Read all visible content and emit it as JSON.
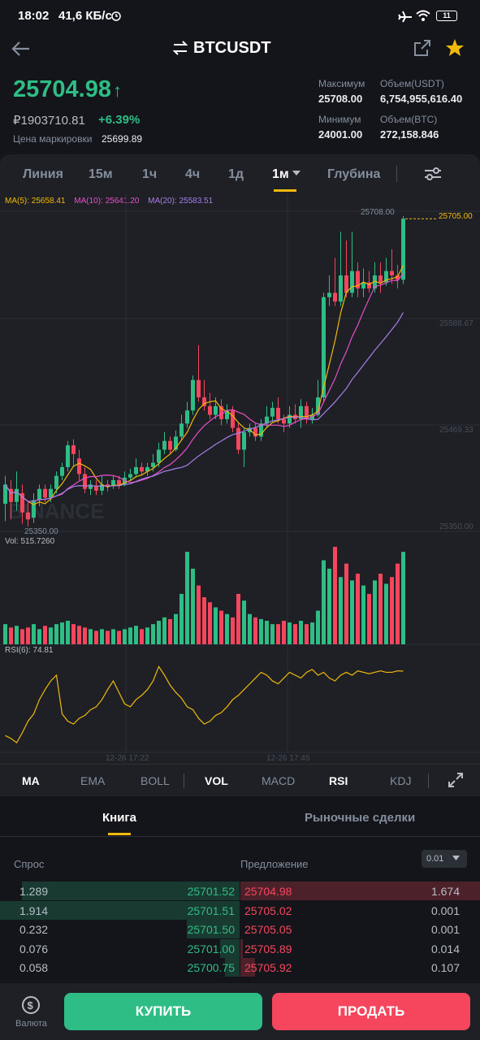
{
  "status": {
    "time": "18:02",
    "network": "41,6 КБ/с",
    "battery": "11"
  },
  "header": {
    "pair": "BTCUSDT"
  },
  "ticker": {
    "last_price": "25704.98",
    "fiat_price": "₽1903710.81",
    "change": "+6.39%",
    "mark_label": "Цена маркировки",
    "mark_price": "25699.89",
    "high_label": "Максимум",
    "high": "25708.00",
    "low_label": "Минимум",
    "low": "24001.00",
    "vol_usdt_label": "Объем(USDT)",
    "vol_usdt": "6,754,955,616.40",
    "vol_btc_label": "Объем(BTC)",
    "vol_btc": "272,158.846"
  },
  "intervals": {
    "line": "Линия",
    "m15": "15м",
    "h1": "1ч",
    "h4": "4ч",
    "d1": "1д",
    "m1": "1м",
    "depth": "Глубина"
  },
  "chart_data": {
    "type": "candlestick",
    "ma_legend": {
      "ma5": "MA(5): 25658.41",
      "ma10": "MA(10): 25641.20",
      "ma20": "MA(20): 25583.51"
    },
    "price_labels": [
      "25708.00",
      "25705.00",
      "25588.67",
      "25469.33",
      "25350.00",
      "25350.00"
    ],
    "ylim": [
      25350,
      25708
    ],
    "vol_label": "Vol: 515.7260",
    "rsi_label": "RSI(6): 74.81",
    "time_labels": [
      "12-26 17:22",
      "12-26 17:45"
    ],
    "watermark": "BINANCE",
    "candles": [
      {
        "o": 25378,
        "c": 25400,
        "h": 25410,
        "l": 25358
      },
      {
        "o": 25395,
        "c": 25380,
        "h": 25405,
        "l": 25360
      },
      {
        "o": 25380,
        "c": 25395,
        "h": 25415,
        "l": 25370
      },
      {
        "o": 25390,
        "c": 25368,
        "h": 25400,
        "l": 25355
      },
      {
        "o": 25368,
        "c": 25360,
        "h": 25380,
        "l": 25352
      },
      {
        "o": 25362,
        "c": 25382,
        "h": 25390,
        "l": 25356
      },
      {
        "o": 25382,
        "c": 25395,
        "h": 25400,
        "l": 25375
      },
      {
        "o": 25395,
        "c": 25385,
        "h": 25400,
        "l": 25380
      },
      {
        "o": 25385,
        "c": 25395,
        "h": 25400,
        "l": 25380
      },
      {
        "o": 25395,
        "c": 25410,
        "h": 25415,
        "l": 25390
      },
      {
        "o": 25410,
        "c": 25420,
        "h": 25425,
        "l": 25405
      },
      {
        "o": 25420,
        "c": 25445,
        "h": 25450,
        "l": 25415
      },
      {
        "o": 25445,
        "c": 25435,
        "h": 25452,
        "l": 25420
      },
      {
        "o": 25430,
        "c": 25412,
        "h": 25440,
        "l": 25405
      },
      {
        "o": 25412,
        "c": 25395,
        "h": 25420,
        "l": 25390
      },
      {
        "o": 25395,
        "c": 25400,
        "h": 25405,
        "l": 25388
      },
      {
        "o": 25398,
        "c": 25393,
        "h": 25405,
        "l": 25388
      },
      {
        "o": 25393,
        "c": 25400,
        "h": 25410,
        "l": 25388
      },
      {
        "o": 25400,
        "c": 25398,
        "h": 25405,
        "l": 25392
      },
      {
        "o": 25398,
        "c": 25405,
        "h": 25410,
        "l": 25395
      },
      {
        "o": 25405,
        "c": 25400,
        "h": 25410,
        "l": 25395
      },
      {
        "o": 25400,
        "c": 25408,
        "h": 25415,
        "l": 25398
      },
      {
        "o": 25408,
        "c": 25412,
        "h": 25418,
        "l": 25405
      },
      {
        "o": 25412,
        "c": 25420,
        "h": 25430,
        "l": 25410
      },
      {
        "o": 25420,
        "c": 25415,
        "h": 25425,
        "l": 25410
      },
      {
        "o": 25415,
        "c": 25420,
        "h": 25425,
        "l": 25410
      },
      {
        "o": 25420,
        "c": 25425,
        "h": 25435,
        "l": 25415
      },
      {
        "o": 25425,
        "c": 25440,
        "h": 25448,
        "l": 25420
      },
      {
        "o": 25440,
        "c": 25450,
        "h": 25460,
        "l": 25435
      },
      {
        "o": 25450,
        "c": 25440,
        "h": 25455,
        "l": 25435
      },
      {
        "o": 25440,
        "c": 25455,
        "h": 25462,
        "l": 25438
      },
      {
        "o": 25455,
        "c": 25470,
        "h": 25480,
        "l": 25450
      },
      {
        "o": 25470,
        "c": 25485,
        "h": 25495,
        "l": 25465
      },
      {
        "o": 25485,
        "c": 25520,
        "h": 25525,
        "l": 25480
      },
      {
        "o": 25520,
        "c": 25500,
        "h": 25560,
        "l": 25495
      },
      {
        "o": 25500,
        "c": 25490,
        "h": 25520,
        "l": 25485
      },
      {
        "o": 25490,
        "c": 25480,
        "h": 25505,
        "l": 25475
      },
      {
        "o": 25480,
        "c": 25490,
        "h": 25500,
        "l": 25475
      },
      {
        "o": 25490,
        "c": 25475,
        "h": 25498,
        "l": 25468
      },
      {
        "o": 25475,
        "c": 25485,
        "h": 25492,
        "l": 25470
      },
      {
        "o": 25485,
        "c": 25465,
        "h": 25490,
        "l": 25460
      },
      {
        "o": 25465,
        "c": 25440,
        "h": 25470,
        "l": 25435
      },
      {
        "o": 25440,
        "c": 25460,
        "h": 25465,
        "l": 25420
      },
      {
        "o": 25460,
        "c": 25465,
        "h": 25470,
        "l": 25455
      },
      {
        "o": 25465,
        "c": 25455,
        "h": 25470,
        "l": 25450
      },
      {
        "o": 25455,
        "c": 25470,
        "h": 25475,
        "l": 25450
      },
      {
        "o": 25470,
        "c": 25478,
        "h": 25490,
        "l": 25465
      },
      {
        "o": 25478,
        "c": 25488,
        "h": 25495,
        "l": 25472
      },
      {
        "o": 25488,
        "c": 25475,
        "h": 25500,
        "l": 25470
      },
      {
        "o": 25475,
        "c": 25470,
        "h": 25480,
        "l": 25460
      },
      {
        "o": 25470,
        "c": 25480,
        "h": 25490,
        "l": 25465
      },
      {
        "o": 25480,
        "c": 25475,
        "h": 25492,
        "l": 25470
      },
      {
        "o": 25475,
        "c": 25490,
        "h": 25498,
        "l": 25465
      },
      {
        "o": 25490,
        "c": 25475,
        "h": 25495,
        "l": 25470
      },
      {
        "o": 25475,
        "c": 25480,
        "h": 25488,
        "l": 25470
      },
      {
        "o": 25480,
        "c": 25500,
        "h": 25520,
        "l": 25478
      },
      {
        "o": 25500,
        "c": 25615,
        "h": 25620,
        "l": 25495
      },
      {
        "o": 25615,
        "c": 25620,
        "h": 25640,
        "l": 25605
      },
      {
        "o": 25620,
        "c": 25610,
        "h": 25660,
        "l": 25605
      },
      {
        "o": 25610,
        "c": 25640,
        "h": 25690,
        "l": 25605
      },
      {
        "o": 25640,
        "c": 25620,
        "h": 25680,
        "l": 25615
      },
      {
        "o": 25620,
        "c": 25645,
        "h": 25690,
        "l": 25615
      },
      {
        "o": 25645,
        "c": 25625,
        "h": 25655,
        "l": 25615
      },
      {
        "o": 25625,
        "c": 25632,
        "h": 25648,
        "l": 25615
      },
      {
        "o": 25632,
        "c": 25625,
        "h": 25645,
        "l": 25620
      },
      {
        "o": 25625,
        "c": 25640,
        "h": 25655,
        "l": 25620
      },
      {
        "o": 25640,
        "c": 25632,
        "h": 25655,
        "l": 25620
      },
      {
        "o": 25632,
        "c": 25645,
        "h": 25660,
        "l": 25628
      },
      {
        "o": 25645,
        "c": 25640,
        "h": 25670,
        "l": 25630
      },
      {
        "o": 25640,
        "c": 25635,
        "h": 25652,
        "l": 25625
      },
      {
        "o": 25635,
        "c": 25705,
        "h": 25708,
        "l": 25630
      }
    ],
    "volumes": [
      12,
      10,
      11,
      9,
      10,
      12,
      9,
      11,
      10,
      12,
      13,
      14,
      12,
      11,
      10,
      9,
      8,
      9,
      8,
      9,
      8,
      9,
      10,
      11,
      9,
      10,
      12,
      14,
      16,
      15,
      18,
      30,
      55,
      45,
      35,
      28,
      25,
      22,
      20,
      18,
      16,
      30,
      26,
      18,
      16,
      15,
      14,
      12,
      12,
      14,
      13,
      12,
      14,
      12,
      13,
      20,
      50,
      45,
      58,
      40,
      48,
      38,
      42,
      35,
      30,
      38,
      42,
      36,
      40,
      48,
      55
    ],
    "rsi": [
      30,
      28,
      25,
      32,
      40,
      45,
      55,
      62,
      68,
      72,
      45,
      40,
      38,
      42,
      44,
      48,
      50,
      55,
      62,
      68,
      60,
      52,
      50,
      55,
      58,
      62,
      68,
      78,
      72,
      65,
      60,
      56,
      50,
      48,
      42,
      38,
      40,
      44,
      46,
      50,
      55,
      58,
      62,
      66,
      70,
      74,
      72,
      68,
      66,
      70,
      74,
      72,
      70,
      74,
      76,
      72,
      74,
      70,
      68,
      72,
      74,
      72,
      75,
      74,
      73,
      74,
      75,
      74,
      74,
      75,
      74.81
    ]
  },
  "indicators": {
    "ma": "MA",
    "ema": "EMA",
    "boll": "BOLL",
    "vol": "VOL",
    "macd": "MACD",
    "rsi": "RSI",
    "kdj": "KDJ"
  },
  "book_tabs": {
    "book": "Книга",
    "trades": "Рыночные сделки"
  },
  "order_book": {
    "bid_label": "Спрос",
    "ask_label": "Предложение",
    "precision": "0.01",
    "rows": [
      {
        "bid_qty": "1.289",
        "bid_price": "25701.52",
        "ask_price": "25704.98",
        "ask_qty": "1.674",
        "bid_depth": 0.91,
        "ask_depth": 1.0
      },
      {
        "bid_qty": "1.914",
        "bid_price": "25701.51",
        "ask_price": "25705.02",
        "ask_qty": "0.001",
        "bid_depth": 1.0,
        "ask_depth": 0
      },
      {
        "bid_qty": "0.232",
        "bid_price": "25701.50",
        "ask_price": "25705.05",
        "ask_qty": "0.001",
        "bid_depth": 0.22,
        "ask_depth": 0
      },
      {
        "bid_qty": "0.076",
        "bid_price": "25701.00",
        "ask_price": "25705.89",
        "ask_qty": "0.014",
        "bid_depth": 0.08,
        "ask_depth": 0.01
      },
      {
        "bid_qty": "0.058",
        "bid_price": "25700.75",
        "ask_price": "25705.92",
        "ask_qty": "0.107",
        "bid_depth": 0.06,
        "ask_depth": 0.06
      }
    ]
  },
  "bottom": {
    "currency_label": "Валюта",
    "buy": "КУПИТЬ",
    "sell": "ПРОДАТЬ"
  }
}
